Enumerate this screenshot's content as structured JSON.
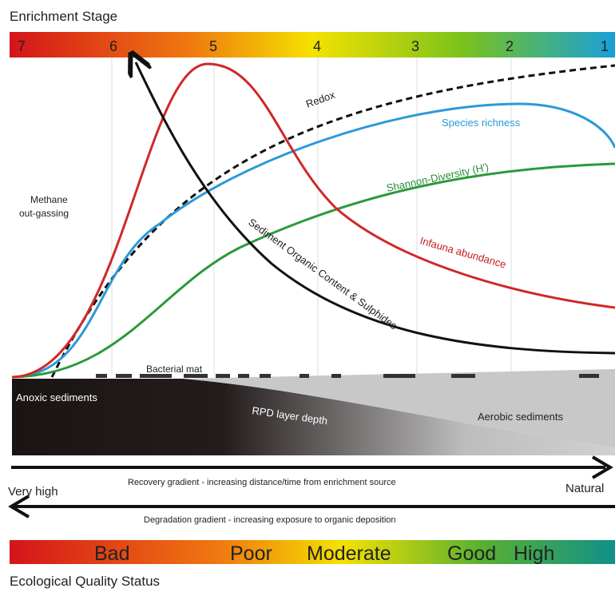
{
  "header": {
    "title": "Enrichment Stage"
  },
  "stages": [
    "7",
    "6",
    "5",
    "4",
    "3",
    "2",
    "1"
  ],
  "curves": {
    "redox": "Redox",
    "species": "Species richness",
    "shannon": "Shannon-Diversity (H')",
    "infauna": "Infauna abundance",
    "organic": "Sediment Organic Content & Sulphides"
  },
  "labels": {
    "methane": [
      "Methane",
      "out-gassing"
    ],
    "mat": "Bacterial mat",
    "anoxic": "Anoxic sediments",
    "rpd": "RPD layer depth",
    "aerobic": "Aerobic sediments"
  },
  "gradients": {
    "left": "Very high",
    "right": "Natural",
    "recovery": "Recovery gradient - increasing distance/time from enrichment source",
    "degradation": "Degradation gradient - increasing exposure to organic deposition"
  },
  "status": {
    "levels": [
      "Bad",
      "Poor",
      "Moderate",
      "Good",
      "High"
    ],
    "title": "Ecological Quality Status"
  }
}
